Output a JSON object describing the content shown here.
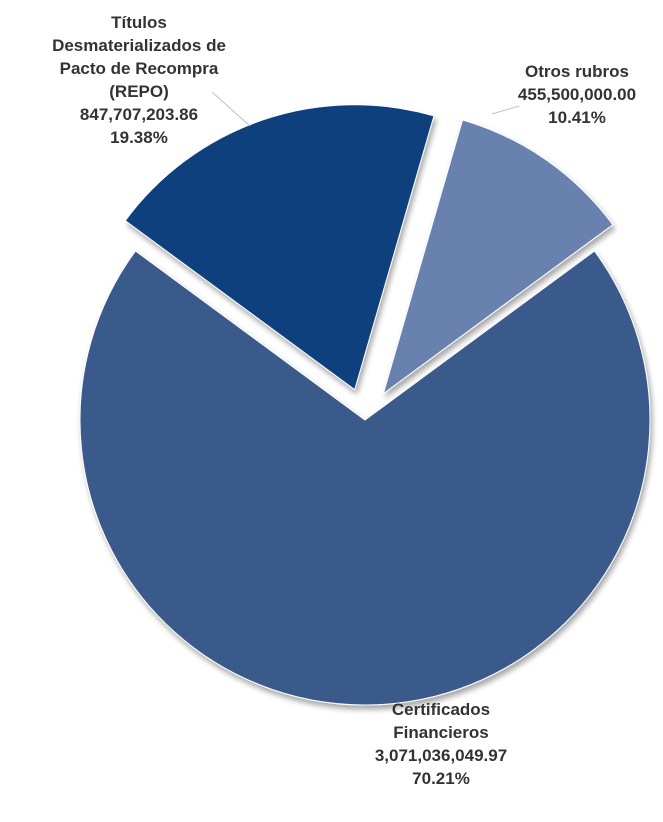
{
  "chart_data": {
    "type": "pie",
    "categories": [
      "Certificados Financieros",
      "Títulos Desmaterializados de Pacto de Recompra (REPO)",
      "Otros rubros"
    ],
    "values": [
      3071036049.97,
      847707203.86,
      455500000.0
    ],
    "percentages": [
      70.21,
      19.38,
      10.41
    ],
    "colors": [
      "#3a5a8c",
      "#0e3f7c",
      "#6781ae"
    ],
    "exploded": [
      false,
      true,
      true
    ],
    "labels": [
      {
        "lines": [
          "Certificados",
          "Financieros"
        ],
        "value": "3,071,036,049.97",
        "percent": "70.21%"
      },
      {
        "lines": [
          "Títulos",
          "Desmaterializados de",
          "Pacto de Recompra",
          "(REPO)"
        ],
        "value": "847,707,203.86",
        "percent": "19.38%"
      },
      {
        "lines": [
          "Otros rubros"
        ],
        "value": "455,500,000.00",
        "percent": "10.41%"
      }
    ],
    "legend": "none"
  }
}
